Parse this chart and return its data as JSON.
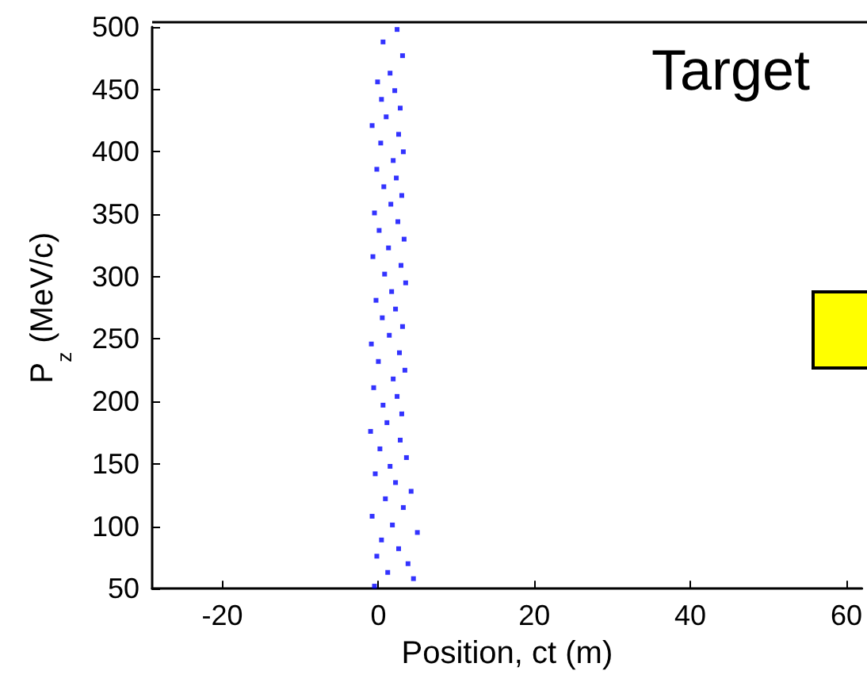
{
  "chart_data": {
    "type": "scatter",
    "xlabel": "Position, ct (m)",
    "ylabel": "P$_{z}$ (MeV/c)",
    "annotations": [
      "Target"
    ],
    "xlim": [
      -29,
      62
    ],
    "xticks": [
      -20,
      0,
      20,
      40,
      60
    ],
    "ylim": [
      50,
      500
    ],
    "yticks": [
      50,
      100,
      150,
      200,
      250,
      300,
      350,
      400,
      450,
      500
    ],
    "grid": false,
    "marker": "square",
    "series": [
      {
        "color": "#0000ff",
        "x": [
          -0.5,
          4.5,
          1.2,
          3.8,
          -0.2,
          2.6,
          0.4,
          5.0,
          1.8,
          -0.8,
          3.2,
          0.9,
          4.2,
          2.2,
          -0.4,
          1.5,
          3.6,
          0.2,
          2.8,
          -1.0,
          1.1,
          3.0,
          0.6,
          2.4,
          -0.6,
          1.9,
          3.4,
          0.0,
          2.7,
          -0.9,
          1.4,
          3.1,
          0.5,
          2.2,
          -0.3,
          1.7,
          3.5,
          0.8,
          2.9,
          -0.7,
          1.3,
          3.3,
          0.1,
          2.5,
          -0.5,
          1.6,
          3.0,
          0.7,
          2.3,
          -0.2,
          1.9,
          3.2,
          0.3,
          2.6,
          -0.8,
          1.0,
          2.8,
          0.4,
          2.1,
          -0.1,
          1.5,
          3.1,
          0.6,
          2.4
        ],
        "values": [
          52,
          58,
          63,
          70,
          76,
          82,
          89,
          95,
          101,
          108,
          115,
          122,
          128,
          135,
          142,
          148,
          155,
          162,
          169,
          176,
          183,
          190,
          197,
          204,
          211,
          218,
          225,
          232,
          239,
          246,
          253,
          260,
          267,
          274,
          281,
          288,
          295,
          302,
          309,
          316,
          323,
          330,
          337,
          344,
          351,
          358,
          365,
          372,
          379,
          386,
          393,
          400,
          407,
          414,
          421,
          428,
          435,
          442,
          449,
          456,
          463,
          477,
          488,
          498
        ]
      }
    ]
  }
}
